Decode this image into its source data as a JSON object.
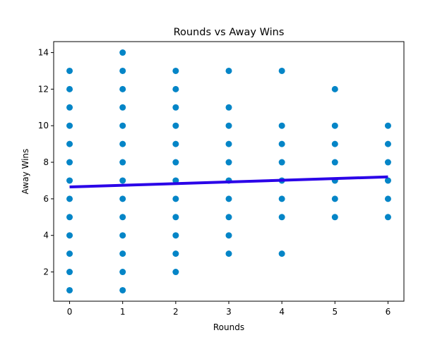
{
  "chart_data": {
    "type": "scatter",
    "title": "Rounds vs Away Wins",
    "xlabel": "Rounds",
    "ylabel": "Away Wins",
    "xlim": [
      -0.3,
      6.3
    ],
    "ylim": [
      0.4,
      14.6
    ],
    "xticks": [
      0,
      1,
      2,
      3,
      4,
      5,
      6
    ],
    "yticks": [
      2,
      4,
      6,
      8,
      10,
      12,
      14
    ],
    "grid": false,
    "point_color": "#0485c7",
    "line_color": "#2a00e8",
    "points": [
      [
        0,
        1
      ],
      [
        0,
        2
      ],
      [
        0,
        3
      ],
      [
        0,
        4
      ],
      [
        0,
        5
      ],
      [
        0,
        6
      ],
      [
        0,
        7
      ],
      [
        0,
        8
      ],
      [
        0,
        9
      ],
      [
        0,
        10
      ],
      [
        0,
        11
      ],
      [
        0,
        12
      ],
      [
        0,
        13
      ],
      [
        1,
        1
      ],
      [
        1,
        2
      ],
      [
        1,
        3
      ],
      [
        1,
        4
      ],
      [
        1,
        5
      ],
      [
        1,
        6
      ],
      [
        1,
        7
      ],
      [
        1,
        8
      ],
      [
        1,
        9
      ],
      [
        1,
        10
      ],
      [
        1,
        11
      ],
      [
        1,
        12
      ],
      [
        1,
        13
      ],
      [
        1,
        14
      ],
      [
        2,
        2
      ],
      [
        2,
        3
      ],
      [
        2,
        4
      ],
      [
        2,
        5
      ],
      [
        2,
        6
      ],
      [
        2,
        7
      ],
      [
        2,
        8
      ],
      [
        2,
        9
      ],
      [
        2,
        10
      ],
      [
        2,
        11
      ],
      [
        2,
        12
      ],
      [
        2,
        13
      ],
      [
        3,
        3
      ],
      [
        3,
        4
      ],
      [
        3,
        5
      ],
      [
        3,
        6
      ],
      [
        3,
        7
      ],
      [
        3,
        8
      ],
      [
        3,
        9
      ],
      [
        3,
        10
      ],
      [
        3,
        11
      ],
      [
        3,
        13
      ],
      [
        4,
        3
      ],
      [
        4,
        5
      ],
      [
        4,
        6
      ],
      [
        4,
        7
      ],
      [
        4,
        8
      ],
      [
        4,
        9
      ],
      [
        4,
        10
      ],
      [
        4,
        13
      ],
      [
        5,
        5
      ],
      [
        5,
        6
      ],
      [
        5,
        7
      ],
      [
        5,
        8
      ],
      [
        5,
        9
      ],
      [
        5,
        10
      ],
      [
        5,
        12
      ],
      [
        6,
        5
      ],
      [
        6,
        6
      ],
      [
        6,
        7
      ],
      [
        6,
        8
      ],
      [
        6,
        9
      ],
      [
        6,
        10
      ]
    ],
    "trend_line": {
      "x": [
        0,
        6
      ],
      "y": [
        6.65,
        7.2
      ]
    }
  }
}
